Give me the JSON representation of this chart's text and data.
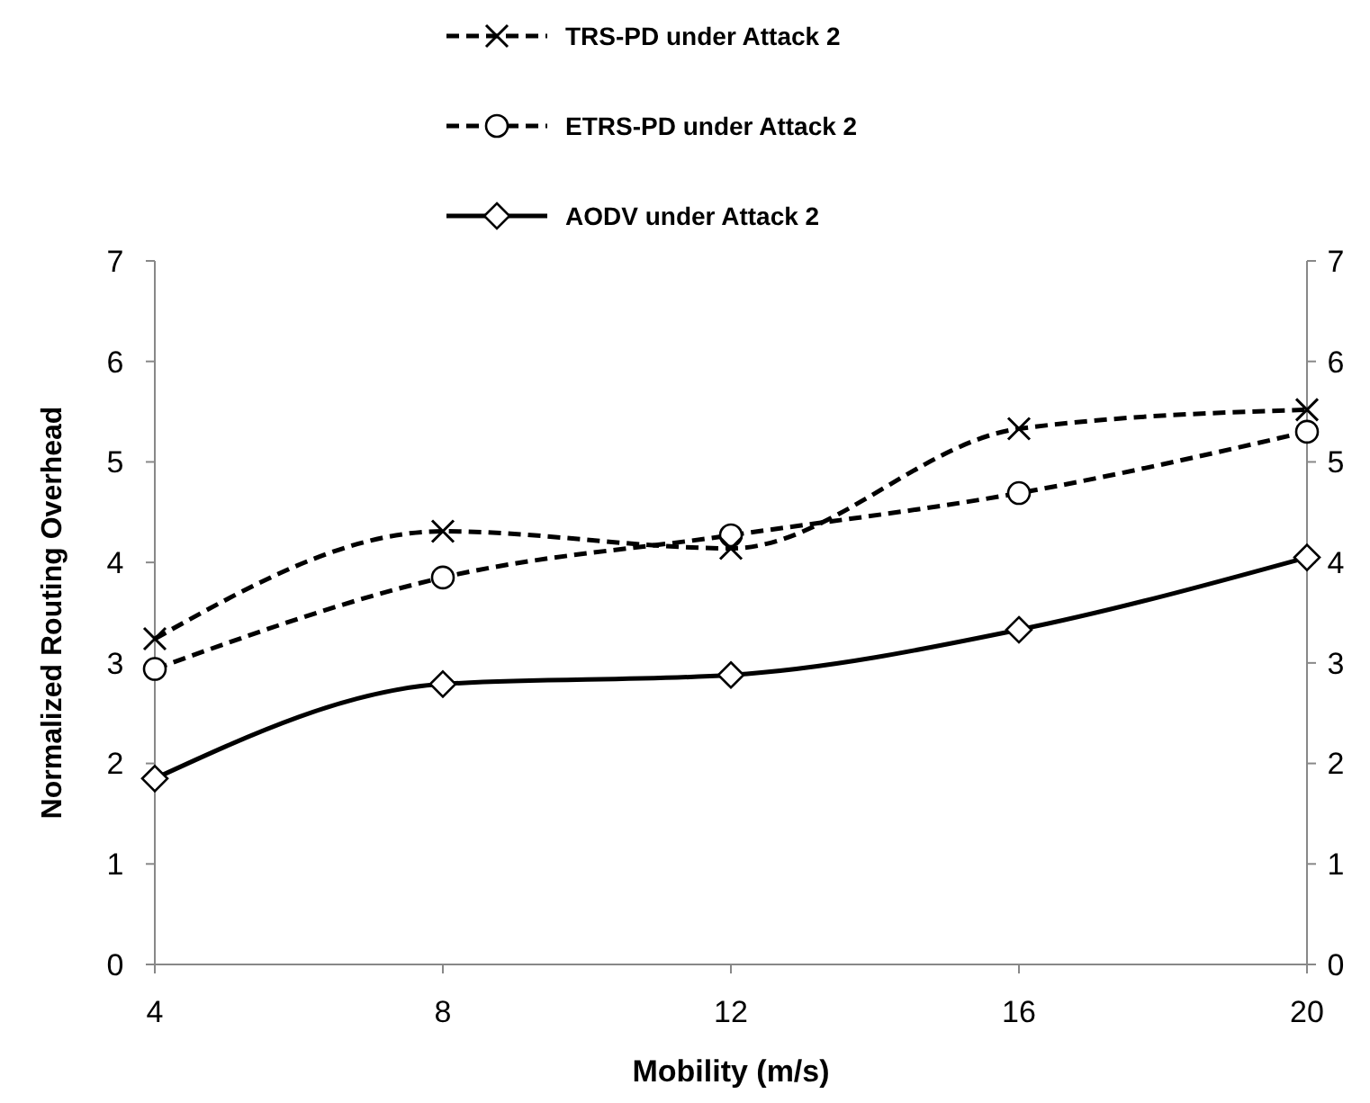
{
  "chart_data": {
    "type": "line",
    "xlabel": "Mobility (m/s)",
    "ylabel": "Normalized Routing Overhead",
    "x": [
      4,
      8,
      12,
      16,
      20
    ],
    "xlim": [
      4,
      20
    ],
    "xticks": [
      4,
      8,
      12,
      16,
      20
    ],
    "ylim": [
      0,
      7
    ],
    "yticks": [
      0,
      1,
      2,
      3,
      4,
      5,
      6,
      7
    ],
    "y2lim": [
      0,
      7
    ],
    "y2ticks": [
      0,
      1,
      2,
      3,
      4,
      5,
      6,
      7
    ],
    "grid": false,
    "legend": "top",
    "series": [
      {
        "name": "TRS-PD under Attack 2",
        "color": "#000000",
        "marker": "cross",
        "line_style": "dashed",
        "values": [
          3.24,
          4.31,
          4.14,
          5.33,
          5.52
        ]
      },
      {
        "name": "ETRS-PD under Attack 2",
        "color": "#000000",
        "marker": "circle",
        "line_style": "dashed",
        "values": [
          2.94,
          3.85,
          4.27,
          4.69,
          5.3
        ]
      },
      {
        "name": "AODV under Attack 2",
        "color": "#000000",
        "marker": "diamond",
        "line_style": "solid",
        "values": [
          1.85,
          2.79,
          2.88,
          3.33,
          4.05
        ]
      }
    ]
  }
}
